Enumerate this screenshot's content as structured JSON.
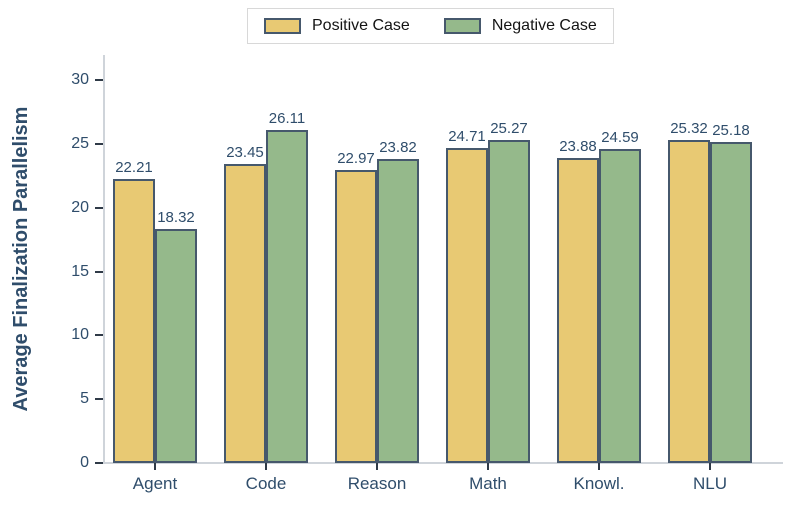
{
  "chart_data": {
    "type": "bar",
    "title": "",
    "xlabel": "",
    "ylabel": "Average Finalization Parallelism",
    "categories": [
      "Agent",
      "Code",
      "Reason",
      "Math",
      "Knowl.",
      "NLU"
    ],
    "series": [
      {
        "name": "Positive Case",
        "color": "#e8c973",
        "values": [
          22.21,
          23.45,
          22.97,
          24.71,
          23.88,
          25.32
        ]
      },
      {
        "name": "Negative Case",
        "color": "#95b98b",
        "values": [
          18.32,
          26.11,
          23.82,
          25.27,
          24.59,
          25.18
        ]
      }
    ],
    "value_labels": {
      "Positive Case": [
        "22.21",
        "23.45",
        "22.97",
        "24.71",
        "23.88",
        "25.32"
      ],
      "Negative Case": [
        "18.32",
        "26.11",
        "23.82",
        "25.27",
        "24.59",
        "25.18"
      ]
    },
    "ylim": [
      0,
      30
    ],
    "yticks": [
      "0",
      "5",
      "10",
      "15",
      "20",
      "25",
      "30"
    ],
    "grid": false,
    "legend_position": "top-center",
    "colors": {
      "bar_border": "#46586c",
      "axis_spine": "#cfd4da",
      "tick_mark": "#2f3a47",
      "text_navy": "#2f4d6b",
      "legend_border": "#d8d8d8",
      "legend_text": "#141414"
    }
  }
}
